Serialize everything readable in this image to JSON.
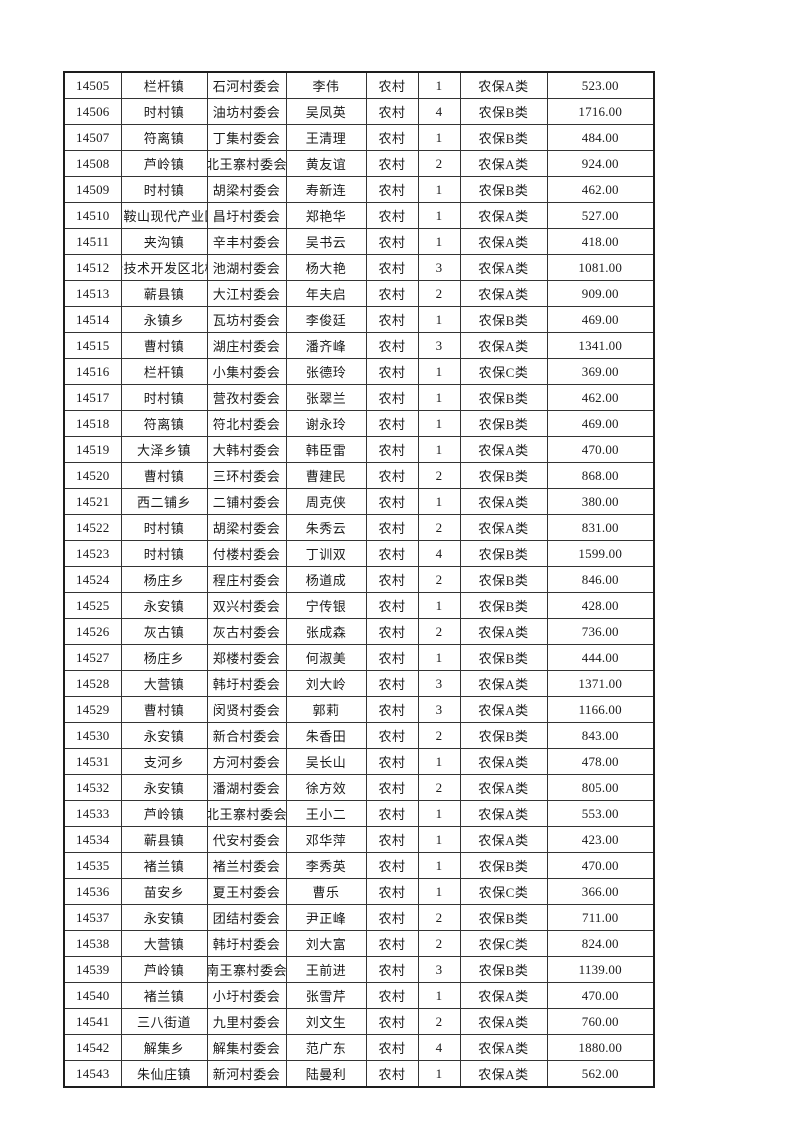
{
  "page": {
    "background_color": "#ffffff",
    "text_color": "#1a1a1a",
    "grid_color": "#343434"
  },
  "table": {
    "rows": [
      [
        "14505",
        "栏杆镇",
        "石河村委会",
        "李伟",
        "农村",
        "1",
        "农保A类",
        "523.00"
      ],
      [
        "14506",
        "时村镇",
        "油坊村委会",
        "吴凤英",
        "农村",
        "4",
        "农保B类",
        "1716.00"
      ],
      [
        "14507",
        "符离镇",
        "丁集村委会",
        "王清理",
        "农村",
        "1",
        "农保B类",
        "484.00"
      ],
      [
        "14508",
        "芦岭镇",
        "北王寨村委会",
        "黄友谊",
        "农村",
        "2",
        "农保A类",
        "924.00"
      ],
      [
        "14509",
        "时村镇",
        "胡梁村委会",
        "寿新连",
        "农村",
        "1",
        "农保B类",
        "462.00"
      ],
      [
        "14510",
        "马鞍山现代产业园",
        "昌圩村委会",
        "郑艳华",
        "农村",
        "1",
        "农保A类",
        "527.00"
      ],
      [
        "14511",
        "夹沟镇",
        "辛丰村委会",
        "吴书云",
        "农村",
        "1",
        "农保A类",
        "418.00"
      ],
      [
        "14512",
        "高新技术开发区北杨寨",
        "池湖村委会",
        "杨大艳",
        "农村",
        "3",
        "农保A类",
        "1081.00"
      ],
      [
        "14513",
        "蕲县镇",
        "大江村委会",
        "年夫启",
        "农村",
        "2",
        "农保A类",
        "909.00"
      ],
      [
        "14514",
        "永镇乡",
        "瓦坊村委会",
        "李俊廷",
        "农村",
        "1",
        "农保B类",
        "469.00"
      ],
      [
        "14515",
        "曹村镇",
        "湖庄村委会",
        "潘齐峰",
        "农村",
        "3",
        "农保A类",
        "1341.00"
      ],
      [
        "14516",
        "栏杆镇",
        "小集村委会",
        "张德玲",
        "农村",
        "1",
        "农保C类",
        "369.00"
      ],
      [
        "14517",
        "时村镇",
        "营孜村委会",
        "张翠兰",
        "农村",
        "1",
        "农保B类",
        "462.00"
      ],
      [
        "14518",
        "符离镇",
        "符北村委会",
        "谢永玲",
        "农村",
        "1",
        "农保B类",
        "469.00"
      ],
      [
        "14519",
        "大泽乡镇",
        "大韩村委会",
        "韩臣雷",
        "农村",
        "1",
        "农保A类",
        "470.00"
      ],
      [
        "14520",
        "曹村镇",
        "三环村委会",
        "曹建民",
        "农村",
        "2",
        "农保B类",
        "868.00"
      ],
      [
        "14521",
        "西二铺乡",
        "二铺村委会",
        "周克侠",
        "农村",
        "1",
        "农保A类",
        "380.00"
      ],
      [
        "14522",
        "时村镇",
        "胡梁村委会",
        "朱秀云",
        "农村",
        "2",
        "农保A类",
        "831.00"
      ],
      [
        "14523",
        "时村镇",
        "付楼村委会",
        "丁训双",
        "农村",
        "4",
        "农保B类",
        "1599.00"
      ],
      [
        "14524",
        "杨庄乡",
        "程庄村委会",
        "杨道成",
        "农村",
        "2",
        "农保B类",
        "846.00"
      ],
      [
        "14525",
        "永安镇",
        "双兴村委会",
        "宁传银",
        "农村",
        "1",
        "农保B类",
        "428.00"
      ],
      [
        "14526",
        "灰古镇",
        "灰古村委会",
        "张成森",
        "农村",
        "2",
        "农保A类",
        "736.00"
      ],
      [
        "14527",
        "杨庄乡",
        "郑楼村委会",
        "何淑美",
        "农村",
        "1",
        "农保B类",
        "444.00"
      ],
      [
        "14528",
        "大营镇",
        "韩圩村委会",
        "刘大岭",
        "农村",
        "3",
        "农保A类",
        "1371.00"
      ],
      [
        "14529",
        "曹村镇",
        "闵贤村委会",
        "郭莉",
        "农村",
        "3",
        "农保A类",
        "1166.00"
      ],
      [
        "14530",
        "永安镇",
        "新合村委会",
        "朱香田",
        "农村",
        "2",
        "农保B类",
        "843.00"
      ],
      [
        "14531",
        "支河乡",
        "方河村委会",
        "吴长山",
        "农村",
        "1",
        "农保A类",
        "478.00"
      ],
      [
        "14532",
        "永安镇",
        "潘湖村委会",
        "徐方效",
        "农村",
        "2",
        "农保A类",
        "805.00"
      ],
      [
        "14533",
        "芦岭镇",
        "北王寨村委会",
        "王小二",
        "农村",
        "1",
        "农保A类",
        "553.00"
      ],
      [
        "14534",
        "蕲县镇",
        "代安村委会",
        "邓华萍",
        "农村",
        "1",
        "农保A类",
        "423.00"
      ],
      [
        "14535",
        "褚兰镇",
        "褚兰村委会",
        "李秀英",
        "农村",
        "1",
        "农保B类",
        "470.00"
      ],
      [
        "14536",
        "苗安乡",
        "夏王村委会",
        "曹乐",
        "农村",
        "1",
        "农保C类",
        "366.00"
      ],
      [
        "14537",
        "永安镇",
        "团结村委会",
        "尹正峰",
        "农村",
        "2",
        "农保B类",
        "711.00"
      ],
      [
        "14538",
        "大营镇",
        "韩圩村委会",
        "刘大富",
        "农村",
        "2",
        "农保C类",
        "824.00"
      ],
      [
        "14539",
        "芦岭镇",
        "南王寨村委会",
        "王前进",
        "农村",
        "3",
        "农保B类",
        "1139.00"
      ],
      [
        "14540",
        "褚兰镇",
        "小圩村委会",
        "张雪芹",
        "农村",
        "1",
        "农保A类",
        "470.00"
      ],
      [
        "14541",
        "三八街道",
        "九里村委会",
        "刘文生",
        "农村",
        "2",
        "农保A类",
        "760.00"
      ],
      [
        "14542",
        "解集乡",
        "解集村委会",
        "范广东",
        "农村",
        "4",
        "农保A类",
        "1880.00"
      ],
      [
        "14543",
        "朱仙庄镇",
        "新河村委会",
        "陆曼利",
        "农村",
        "1",
        "农保A类",
        "562.00"
      ]
    ]
  }
}
